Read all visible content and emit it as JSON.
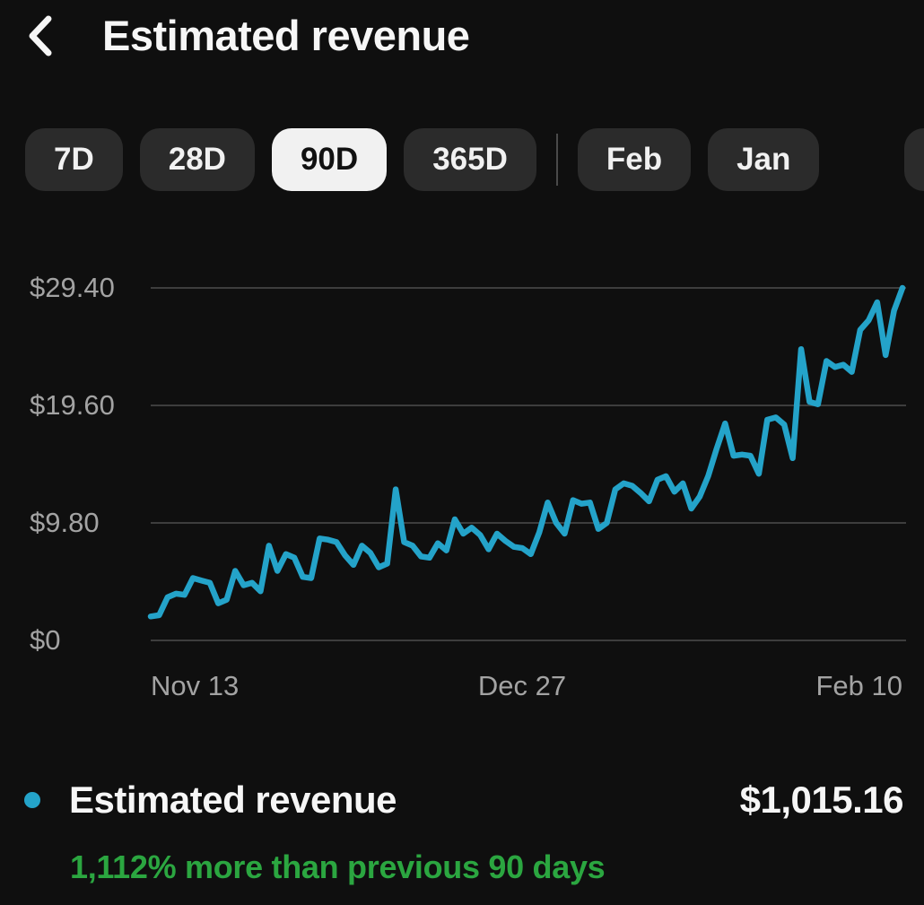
{
  "header": {
    "title": "Estimated revenue"
  },
  "filters": {
    "range_pills": [
      {
        "label": "7D",
        "selected": false
      },
      {
        "label": "28D",
        "selected": false
      },
      {
        "label": "90D",
        "selected": true
      },
      {
        "label": "365D",
        "selected": false
      }
    ],
    "month_pills": [
      {
        "label": "Feb",
        "selected": false
      },
      {
        "label": "Jan",
        "selected": false
      }
    ],
    "partial_pill": {
      "label": "",
      "visible": true
    }
  },
  "chart_data": {
    "type": "line",
    "title": "Estimated revenue, last 90 days",
    "xlabel": "",
    "ylabel": "",
    "ylim": [
      0,
      29.4
    ],
    "grid": "horizontal",
    "legend_position": "bottom",
    "currency": "USD",
    "yticks": [
      {
        "label": "$0",
        "value": 0
      },
      {
        "label": "$9.80",
        "value": 9.8
      },
      {
        "label": "$19.60",
        "value": 19.6
      },
      {
        "label": "$29.40",
        "value": 29.4
      }
    ],
    "xticks": [
      {
        "label": "Nov 13",
        "position": 0.0
      },
      {
        "label": "Dec 27",
        "position": 0.494
      },
      {
        "label": "Feb 10",
        "position": 1.0
      }
    ],
    "series": [
      {
        "name": "Estimated revenue",
        "color": "#24a3c9",
        "values": [
          2.0,
          2.1,
          3.6,
          3.9,
          3.8,
          5.2,
          5.0,
          4.8,
          3.1,
          3.4,
          5.8,
          4.6,
          4.8,
          4.1,
          7.9,
          5.8,
          7.2,
          6.9,
          5.3,
          5.2,
          8.5,
          8.4,
          8.2,
          7.1,
          6.3,
          7.9,
          7.3,
          6.1,
          6.4,
          12.6,
          8.2,
          7.9,
          7.0,
          6.9,
          8.1,
          7.5,
          10.1,
          8.9,
          9.4,
          8.8,
          7.6,
          8.9,
          8.3,
          7.8,
          7.7,
          7.2,
          9.0,
          11.5,
          9.8,
          8.9,
          11.7,
          11.4,
          11.5,
          9.3,
          9.8,
          12.6,
          13.1,
          12.9,
          12.3,
          11.6,
          13.4,
          13.7,
          12.4,
          13.1,
          11.0,
          12.0,
          13.7,
          16.0,
          18.1,
          15.4,
          15.5,
          15.4,
          13.9,
          18.4,
          18.6,
          18.0,
          15.2,
          24.3,
          19.9,
          19.7,
          23.3,
          22.8,
          23.0,
          22.4,
          25.9,
          26.7,
          28.2,
          23.8,
          27.5,
          29.4
        ]
      }
    ]
  },
  "summary": {
    "metric_label": "Estimated revenue",
    "metric_value": "$1,015.16",
    "delta_text": "1,112% more than previous 90 days",
    "delta_color": "#2ba640",
    "dot_color": "#24a3c9"
  },
  "colors": {
    "background": "#0f0f0f",
    "pill_background": "#2b2b2b",
    "pill_selected_background": "#f1f1f1",
    "grid": "#3d3d3d",
    "axis_text": "#a3a3a3"
  }
}
